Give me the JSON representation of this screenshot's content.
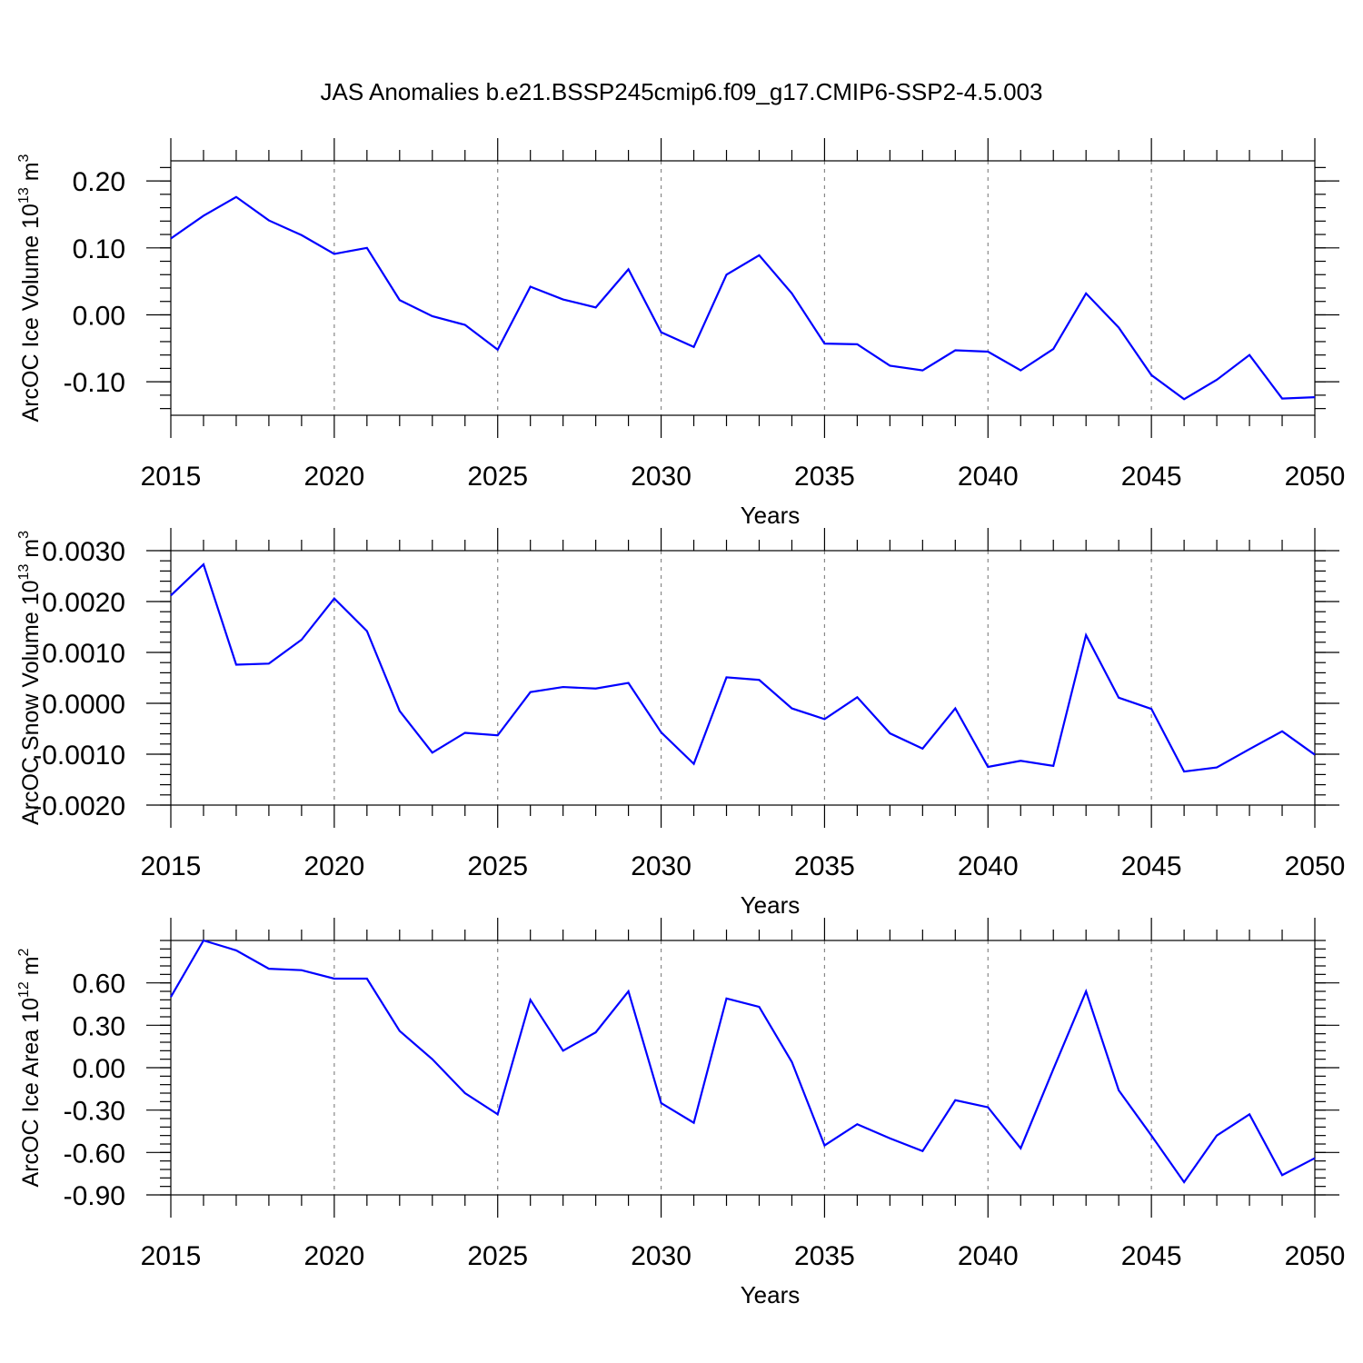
{
  "title": "JAS Anomalies b.e21.BSSP245cmip6.f09_g17.CMIP6-SSP2-4.5.003",
  "chart_data": [
    {
      "type": "line",
      "ylabel": "ArcOC Ice Volume 10",
      "ylabel_exp": "13",
      "ylabel_unit": "m",
      "ylabel_unit_exp": "3",
      "xlabel": "Years",
      "xlim": [
        2015,
        2050
      ],
      "ylim": [
        -0.15,
        0.23
      ],
      "grid": "dashed vertical lines at major x ticks",
      "line_color": "#0000ff",
      "x_ticks": [
        2015,
        2020,
        2025,
        2030,
        2035,
        2040,
        2045,
        2050
      ],
      "x_tick_labels": [
        "2015",
        "2020",
        "2025",
        "2030",
        "2035",
        "2040",
        "2045",
        "2050"
      ],
      "y_ticks": [
        0.2,
        0.1,
        0.0,
        -0.1
      ],
      "y_tick_labels": [
        "0.20",
        "0.10",
        "0.00",
        "-0.10"
      ],
      "y_minor_step": 0.02,
      "x": [
        2015,
        2016,
        2017,
        2018,
        2019,
        2020,
        2021,
        2022,
        2023,
        2024,
        2025,
        2026,
        2027,
        2028,
        2029,
        2030,
        2031,
        2032,
        2033,
        2034,
        2035,
        2036,
        2037,
        2038,
        2039,
        2040,
        2041,
        2042,
        2043,
        2044,
        2045,
        2046,
        2047,
        2048,
        2049,
        2050
      ],
      "y": [
        0.114,
        0.148,
        0.176,
        0.141,
        0.119,
        0.091,
        0.1,
        0.022,
        -0.002,
        -0.015,
        -0.052,
        0.042,
        0.023,
        0.011,
        0.068,
        -0.026,
        -0.048,
        0.06,
        0.089,
        0.032,
        -0.043,
        -0.044,
        -0.076,
        -0.083,
        -0.053,
        -0.055,
        -0.083,
        -0.051,
        0.032,
        -0.019,
        -0.09,
        -0.126,
        -0.097,
        -0.06,
        -0.125,
        -0.123
      ]
    },
    {
      "type": "line",
      "ylabel": "ArcOC Snow Volume 10",
      "ylabel_exp": "13",
      "ylabel_unit": "m",
      "ylabel_unit_exp": "3",
      "xlabel": "Years",
      "xlim": [
        2015,
        2050
      ],
      "ylim": [
        -0.002,
        0.003
      ],
      "grid": "dashed vertical lines at major x ticks",
      "line_color": "#0000ff",
      "x_ticks": [
        2015,
        2020,
        2025,
        2030,
        2035,
        2040,
        2045,
        2050
      ],
      "x_tick_labels": [
        "2015",
        "2020",
        "2025",
        "2030",
        "2035",
        "2040",
        "2045",
        "2050"
      ],
      "y_ticks": [
        0.003,
        0.002,
        0.001,
        0.0,
        -0.001,
        -0.002
      ],
      "y_tick_labels": [
        "0.0030",
        "0.0020",
        "0.0010",
        "0.0000",
        "-0.0010",
        "-0.0020"
      ],
      "y_minor_step": 0.0002,
      "x": [
        2015,
        2016,
        2017,
        2018,
        2019,
        2020,
        2021,
        2022,
        2023,
        2024,
        2025,
        2026,
        2027,
        2028,
        2029,
        2030,
        2031,
        2032,
        2033,
        2034,
        2035,
        2036,
        2037,
        2038,
        2039,
        2040,
        2041,
        2042,
        2043,
        2044,
        2045,
        2046,
        2047,
        2048,
        2049,
        2050
      ],
      "y": [
        0.00212,
        0.00273,
        0.00076,
        0.00078,
        0.00125,
        0.00206,
        0.00142,
        -0.00015,
        -0.00097,
        -0.00058,
        -0.00063,
        0.00022,
        0.00032,
        0.00029,
        0.0004,
        -0.00057,
        -0.00119,
        0.00051,
        0.00046,
        -0.0001,
        -0.00031,
        0.00012,
        -0.00059,
        -0.00089,
        -0.0001,
        -0.00125,
        -0.00113,
        -0.00123,
        0.00134,
        0.00011,
        -0.00011,
        -0.00134,
        -0.00126,
        -0.0009,
        -0.00055,
        -0.00101
      ]
    },
    {
      "type": "line",
      "ylabel": "ArcOC Ice Area 10",
      "ylabel_exp": "12",
      "ylabel_unit": "m",
      "ylabel_unit_exp": "2",
      "xlabel": "Years",
      "xlim": [
        2015,
        2050
      ],
      "ylim": [
        -0.9,
        0.9
      ],
      "grid": "dashed vertical lines at major x ticks",
      "line_color": "#0000ff",
      "x_ticks": [
        2015,
        2020,
        2025,
        2030,
        2035,
        2040,
        2045,
        2050
      ],
      "x_tick_labels": [
        "2015",
        "2020",
        "2025",
        "2030",
        "2035",
        "2040",
        "2045",
        "2050"
      ],
      "y_ticks": [
        0.6,
        0.3,
        0.0,
        -0.3,
        -0.6,
        -0.9
      ],
      "y_tick_labels": [
        "0.60",
        "0.30",
        "0.00",
        "-0.30",
        "-0.60",
        "-0.90"
      ],
      "y_minor_step": 0.06,
      "x": [
        2015,
        2016,
        2017,
        2018,
        2019,
        2020,
        2021,
        2022,
        2023,
        2024,
        2025,
        2026,
        2027,
        2028,
        2029,
        2030,
        2031,
        2032,
        2033,
        2034,
        2035,
        2036,
        2037,
        2038,
        2039,
        2040,
        2041,
        2042,
        2043,
        2044,
        2045,
        2046,
        2047,
        2048,
        2049,
        2050
      ],
      "y": [
        0.5,
        0.9,
        0.83,
        0.7,
        0.69,
        0.63,
        0.63,
        0.26,
        0.06,
        -0.18,
        -0.33,
        0.48,
        0.12,
        0.25,
        0.54,
        -0.25,
        -0.39,
        0.49,
        0.43,
        0.04,
        -0.55,
        -0.4,
        -0.5,
        -0.59,
        -0.23,
        -0.28,
        -0.57,
        -0.01,
        0.54,
        -0.16,
        -0.48,
        -0.81,
        -0.48,
        -0.33,
        -0.76,
        -0.64
      ]
    }
  ]
}
